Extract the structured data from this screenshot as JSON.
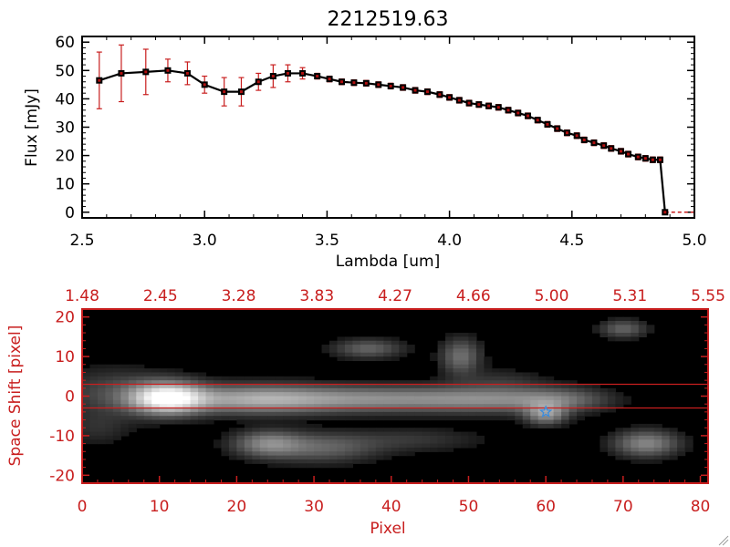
{
  "chart_data": [
    {
      "type": "line",
      "title": "2212519.63",
      "xlabel": "Lambda [um]",
      "ylabel": "Flux [mJy]",
      "xlim": [
        2.5,
        5.0
      ],
      "ylim": [
        -2,
        62
      ],
      "x_ticks": [
        "2.5",
        "3.0",
        "3.5",
        "4.0",
        "4.5",
        "5.0"
      ],
      "y_ticks": [
        "0",
        "10",
        "20",
        "30",
        "40",
        "50",
        "60"
      ],
      "line_color": "#000000",
      "marker_color": "#b01010",
      "error_color": "#c81e1e",
      "series": [
        {
          "x": [
            2.57,
            2.66,
            2.76,
            2.85,
            2.93,
            3.0,
            3.08,
            3.15,
            3.22,
            3.28,
            3.34,
            3.4,
            3.46,
            3.51,
            3.56,
            3.61,
            3.66,
            3.71,
            3.76,
            3.81,
            3.86,
            3.91,
            3.96,
            4.0,
            4.04,
            4.08,
            4.12,
            4.16,
            4.2,
            4.24,
            4.28,
            4.32,
            4.36,
            4.4,
            4.44,
            4.48,
            4.52,
            4.55,
            4.59,
            4.63,
            4.66,
            4.7,
            4.73,
            4.77,
            4.8,
            4.83,
            4.86,
            4.88
          ],
          "y": [
            46.5,
            49.0,
            49.5,
            50.0,
            49.0,
            45.0,
            42.5,
            42.5,
            46.0,
            48.0,
            49.0,
            49.0,
            48.0,
            47.0,
            46.0,
            45.7,
            45.5,
            45.0,
            44.5,
            44.0,
            43.0,
            42.5,
            41.5,
            40.5,
            39.5,
            38.5,
            38.0,
            37.5,
            37.0,
            36.0,
            35.0,
            34.0,
            32.5,
            31.0,
            29.5,
            28.0,
            27.0,
            25.5,
            24.5,
            23.5,
            22.5,
            21.5,
            20.5,
            19.5,
            19.0,
            18.5,
            18.5,
            0.0
          ],
          "err": [
            10,
            10,
            8,
            4,
            4,
            3,
            5,
            5,
            3,
            4,
            3,
            2,
            1,
            1,
            1,
            1,
            1,
            1,
            1,
            1,
            1,
            1,
            1,
            1,
            1,
            1,
            1,
            1,
            1,
            1,
            1,
            1,
            1,
            1,
            1,
            1,
            1,
            1,
            1,
            1,
            1,
            1,
            1,
            1,
            1,
            1,
            1,
            0
          ]
        }
      ],
      "zero_segment": {
        "x": [
          4.88,
          5.0
        ],
        "y": 0
      }
    },
    {
      "type": "heatmap",
      "xlabel": "Pixel",
      "ylabel": "Space Shift [pixel]",
      "xlim": [
        0,
        81
      ],
      "ylim": [
        -22,
        22
      ],
      "x_ticks": [
        "0",
        "10",
        "20",
        "30",
        "40",
        "50",
        "60",
        "70",
        "80"
      ],
      "y_ticks": [
        "-20",
        "-10",
        "0",
        "10",
        "20"
      ],
      "top_ticks": [
        "1.48",
        "2.45",
        "3.28",
        "3.83",
        "4.27",
        "4.66",
        "5.00",
        "5.31",
        "5.55"
      ],
      "axis_color": "#c81e1e",
      "background_color": "#000000",
      "extraction_lines_y": [
        3,
        -3
      ],
      "source_marker": {
        "x": 60,
        "y": -4,
        "color": "#3c8cdc",
        "symbol": "star"
      },
      "emission_features": [
        {
          "x": 11,
          "y": -0.5,
          "sx": 3.2,
          "sy": 2.6,
          "amp": 1.0
        },
        {
          "x": 22,
          "y": -0.8,
          "sx": 7,
          "sy": 2.4,
          "amp": 0.5
        },
        {
          "x": 38,
          "y": -0.8,
          "sx": 10,
          "sy": 2.2,
          "amp": 0.42
        },
        {
          "x": 54,
          "y": -0.9,
          "sx": 7,
          "sy": 2.2,
          "amp": 0.32
        },
        {
          "x": 62,
          "y": -1.0,
          "sx": 4,
          "sy": 2.0,
          "amp": 0.22
        },
        {
          "x": 60,
          "y": -4.5,
          "sx": 1.8,
          "sy": 1.8,
          "amp": 0.45
        },
        {
          "x": 4,
          "y": 1,
          "sx": 5,
          "sy": 4,
          "amp": 0.18
        },
        {
          "x": 24,
          "y": -12,
          "sx": 3,
          "sy": 2.2,
          "amp": 0.38
        },
        {
          "x": 31,
          "y": -13,
          "sx": 5,
          "sy": 2.5,
          "amp": 0.28
        },
        {
          "x": 43,
          "y": -11,
          "sx": 6,
          "sy": 2,
          "amp": 0.12
        },
        {
          "x": 37,
          "y": 12,
          "sx": 3,
          "sy": 1.6,
          "amp": 0.28
        },
        {
          "x": 49,
          "y": 10,
          "sx": 1.7,
          "sy": 3,
          "amp": 0.33
        },
        {
          "x": 70,
          "y": 17,
          "sx": 2,
          "sy": 1.5,
          "amp": 0.28
        },
        {
          "x": 73,
          "y": -12,
          "sx": 2.8,
          "sy": 2.2,
          "amp": 0.42
        },
        {
          "x": 54,
          "y": 4,
          "sx": 4,
          "sy": 2,
          "amp": 0.1
        },
        {
          "x": 2,
          "y": -8,
          "sx": 3,
          "sy": 3,
          "amp": 0.1
        }
      ]
    }
  ]
}
